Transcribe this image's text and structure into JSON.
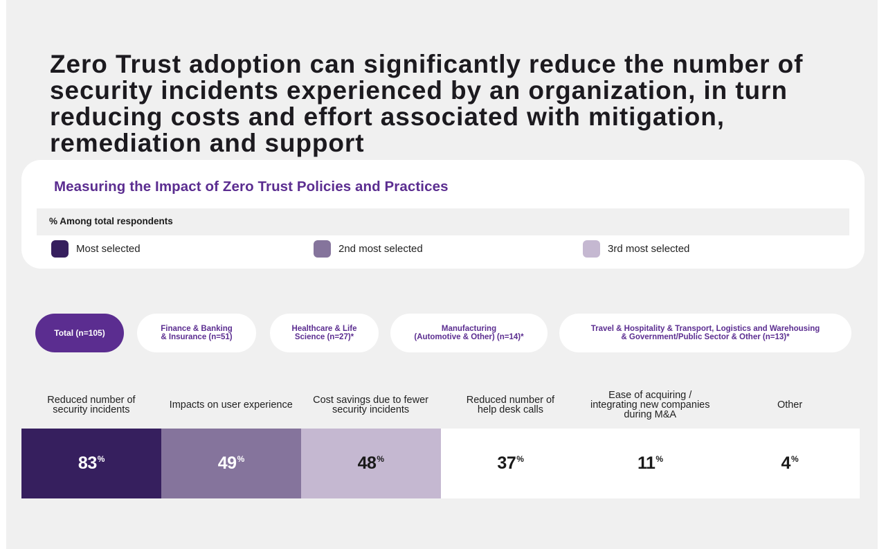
{
  "headline": "Zero Trust adoption can significantly reduce the number of security incidents experienced by an organization, in turn reducing costs and effort associated with mitigation, remediation and support",
  "card": {
    "title": "Measuring the Impact of Zero Trust Policies and Practices",
    "respondents_label": "% Among total respondents",
    "legend": [
      {
        "label": "Most selected",
        "color": "#361f5e"
      },
      {
        "label": "2nd most selected",
        "color": "#85749c"
      },
      {
        "label": "3rd most selected",
        "color": "#c5b8d1"
      }
    ]
  },
  "filters": [
    {
      "label": "Total (n=105)",
      "active": true
    },
    {
      "label": "Finance & Banking\n& Insurance (n=51)",
      "active": false
    },
    {
      "label": "Healthcare & Life\nScience (n=27)*",
      "active": false
    },
    {
      "label": "Manufacturing\n(Automotive & Other) (n=14)*",
      "active": false
    },
    {
      "label": "Travel & Hospitality & Transport, Logistics and Warehousing\n& Government/Public Sector & Other (n=13)*",
      "active": false
    }
  ],
  "chart_data": {
    "type": "table",
    "title": "Measuring the Impact of Zero Trust Policies and Practices",
    "subtitle": "% Among total respondents",
    "segment": "Total (n=105)",
    "unit": "%",
    "categories": [
      "Reduced number of security incidents",
      "Impacts on user experience",
      "Cost savings due to fewer security incidents",
      "Reduced number of help desk calls",
      "Ease of acquiring / integrating new companies during M&A",
      "Other"
    ],
    "category_display": [
      "Reduced number of\nsecurity incidents",
      "Impacts on user experience",
      "Cost savings due to fewer\nsecurity incidents",
      "Reduced number of\nhelp desk calls",
      "Ease of acquiring /\nintegrating new companies\nduring M&A",
      "Other"
    ],
    "values": [
      83,
      49,
      48,
      37,
      11,
      4
    ],
    "rank_highlight": [
      "most",
      "second",
      "third",
      "none",
      "none",
      "none"
    ],
    "legend": [
      "Most selected",
      "2nd most selected",
      "3rd most selected"
    ],
    "colors": {
      "most": "#361f5e",
      "second": "#85749c",
      "third": "#c5b8d1",
      "none": "#ffffff"
    },
    "text_colors": {
      "most": "#ffffff",
      "second": "#ffffff",
      "third": "#1a1a1a",
      "none": "#1a1a1a"
    }
  }
}
